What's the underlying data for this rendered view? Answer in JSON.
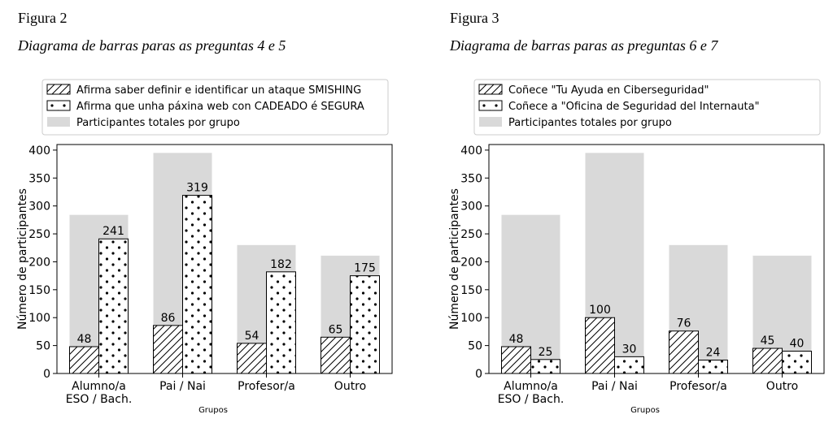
{
  "chart_data": [
    {
      "type": "bar",
      "figure_label": "Figura 2",
      "title": "Diagrama de barras paras as preguntas 4 e 5",
      "xlabel": "Grupos",
      "ylabel": "Número de participantes",
      "ylim": [
        0,
        410
      ],
      "yticks": [
        0,
        50,
        100,
        150,
        200,
        250,
        300,
        350,
        400
      ],
      "categories": [
        "Alumno/a\nESO / Bach.",
        "Pai / Nai",
        "Profesor/a",
        "Outro"
      ],
      "legend_position": "top",
      "series": [
        {
          "name": "Afirma saber definir e identificar un ataque SMISHING",
          "pattern": "hatch",
          "values": [
            48,
            86,
            54,
            65
          ]
        },
        {
          "name": "Afirma que unha páxina web con CADEADO é SEGURA",
          "pattern": "dots",
          "values": [
            241,
            319,
            182,
            175
          ]
        },
        {
          "name": "Participantes totales por grupo",
          "pattern": "solid",
          "color": "#d9d9d9",
          "values": [
            284,
            395,
            230,
            211
          ]
        }
      ]
    },
    {
      "type": "bar",
      "figure_label": "Figura 3",
      "title": "Diagrama de barras paras as preguntas 6 e 7",
      "xlabel": "Grupos",
      "ylabel": "Número de participantes",
      "ylim": [
        0,
        410
      ],
      "yticks": [
        0,
        50,
        100,
        150,
        200,
        250,
        300,
        350,
        400
      ],
      "categories": [
        "Alumno/a\nESO / Bach.",
        "Pai / Nai",
        "Profesor/a",
        "Outro"
      ],
      "legend_position": "top",
      "series": [
        {
          "name": "Coñece \"Tu Ayuda en Ciberseguridad\"",
          "pattern": "hatch",
          "values": [
            48,
            100,
            76,
            45
          ]
        },
        {
          "name": "Coñece a \"Oficina de Seguridad del Internauta\"",
          "pattern": "dots",
          "values": [
            25,
            30,
            24,
            40
          ]
        },
        {
          "name": "Participantes totales por grupo",
          "pattern": "solid",
          "color": "#d9d9d9",
          "values": [
            284,
            395,
            230,
            211
          ]
        }
      ]
    }
  ]
}
